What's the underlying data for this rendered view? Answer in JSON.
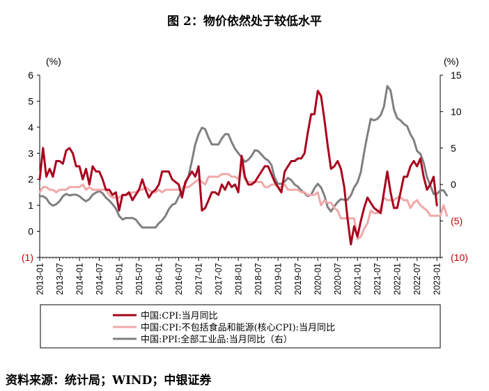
{
  "chart_data": {
    "type": "line",
    "title": "图 2：物价依然处于较低水平",
    "source": "资料来源：统计局；WIND；中银证券",
    "left_axis": {
      "unit_label": "(%)",
      "range": [
        -1,
        6
      ],
      "ticks": [
        {
          "value": 6,
          "label": "6",
          "negative": false
        },
        {
          "value": 5,
          "label": "5",
          "negative": false
        },
        {
          "value": 4,
          "label": "4",
          "negative": false
        },
        {
          "value": 3,
          "label": "3",
          "negative": false
        },
        {
          "value": 2,
          "label": "2",
          "negative": false
        },
        {
          "value": 1,
          "label": "1",
          "negative": false
        },
        {
          "value": 0,
          "label": "0",
          "negative": false
        },
        {
          "value": -1,
          "label": "(1)",
          "negative": true
        }
      ]
    },
    "right_axis": {
      "unit_label": "(%)",
      "range": [
        -10,
        15
      ],
      "ticks": [
        {
          "value": 15,
          "label": "15",
          "negative": false
        },
        {
          "value": 10,
          "label": "10",
          "negative": false
        },
        {
          "value": 5,
          "label": "5",
          "negative": false
        },
        {
          "value": 0,
          "label": "0",
          "negative": false
        },
        {
          "value": -5,
          "label": "(5)",
          "negative": true
        },
        {
          "value": -10,
          "label": "(10)",
          "negative": true
        }
      ]
    },
    "x_range": [
      0,
      121
    ],
    "x_ticks": [
      {
        "index": 0,
        "label": "2013-01"
      },
      {
        "index": 6,
        "label": "2013-07"
      },
      {
        "index": 12,
        "label": "2014-01"
      },
      {
        "index": 18,
        "label": "2014-07"
      },
      {
        "index": 24,
        "label": "2015-01"
      },
      {
        "index": 30,
        "label": "2015-07"
      },
      {
        "index": 36,
        "label": "2016-01"
      },
      {
        "index": 42,
        "label": "2016-07"
      },
      {
        "index": 48,
        "label": "2017-01"
      },
      {
        "index": 54,
        "label": "2017-07"
      },
      {
        "index": 60,
        "label": "2018-01"
      },
      {
        "index": 66,
        "label": "2018-07"
      },
      {
        "index": 72,
        "label": "2019-01"
      },
      {
        "index": 78,
        "label": "2019-07"
      },
      {
        "index": 84,
        "label": "2020-01"
      },
      {
        "index": 90,
        "label": "2020-07"
      },
      {
        "index": 96,
        "label": "2021-01"
      },
      {
        "index": 102,
        "label": "2021-07"
      },
      {
        "index": 108,
        "label": "2022-01"
      },
      {
        "index": 114,
        "label": "2022-07"
      },
      {
        "index": 120,
        "label": "2023-01"
      }
    ],
    "series": [
      {
        "name": "中国:CPI:当月同比",
        "color": "#a8001c",
        "axis": "left",
        "values": [
          2.0,
          3.2,
          2.1,
          2.4,
          2.1,
          2.7,
          2.7,
          2.6,
          3.1,
          3.2,
          3.0,
          2.5,
          2.5,
          2.0,
          2.4,
          1.8,
          2.5,
          2.3,
          2.3,
          2.0,
          1.6,
          1.6,
          1.4,
          1.5,
          0.8,
          1.4,
          1.4,
          1.5,
          1.2,
          1.4,
          1.6,
          2.0,
          1.6,
          1.3,
          1.5,
          1.6,
          1.8,
          2.3,
          2.3,
          2.3,
          2.0,
          1.9,
          1.8,
          1.3,
          1.9,
          2.1,
          2.3,
          2.1,
          2.5,
          0.8,
          0.9,
          1.2,
          1.5,
          1.5,
          1.4,
          1.8,
          1.6,
          1.9,
          1.7,
          1.8,
          1.5,
          2.9,
          2.1,
          1.8,
          1.8,
          1.9,
          2.1,
          2.3,
          2.5,
          2.5,
          2.2,
          1.9,
          1.7,
          1.5,
          2.3,
          2.5,
          2.7,
          2.7,
          2.8,
          2.8,
          3.0,
          3.8,
          4.5,
          4.5,
          5.4,
          5.2,
          4.3,
          3.3,
          2.4,
          2.5,
          2.7,
          2.4,
          1.7,
          0.5,
          -0.5,
          0.2,
          -0.2,
          0.4,
          0.9,
          1.3,
          1.1,
          0.9,
          0.8,
          0.7,
          1.5,
          2.3,
          1.5,
          0.9,
          0.9,
          1.5,
          2.1,
          2.1,
          2.5,
          2.7,
          2.5,
          2.8,
          2.1,
          1.6,
          1.8,
          2.1,
          1.0
        ]
      },
      {
        "name": "中国:CPI:不包括食品和能源(核心CPI):当月同比",
        "color": "#f0a8a8",
        "axis": "left",
        "values": [
          1.5,
          1.7,
          1.7,
          1.6,
          1.6,
          1.5,
          1.6,
          1.6,
          1.6,
          1.7,
          1.7,
          1.7,
          1.7,
          1.8,
          1.6,
          1.7,
          1.6,
          1.6,
          1.6,
          1.6,
          1.6,
          1.4,
          1.3,
          1.3,
          1.3,
          1.4,
          1.4,
          1.4,
          1.5,
          1.5,
          1.6,
          1.6,
          1.7,
          1.6,
          1.5,
          1.5,
          1.6,
          1.5,
          1.6,
          1.6,
          1.6,
          1.6,
          1.6,
          1.6,
          1.7,
          1.7,
          1.8,
          1.9,
          2.0,
          1.9,
          1.8,
          2.1,
          2.1,
          2.1,
          2.1,
          2.2,
          2.2,
          2.2,
          2.1,
          2.1,
          2.0,
          2.5,
          2.0,
          1.9,
          1.9,
          1.9,
          1.9,
          1.9,
          1.7,
          1.7,
          1.8,
          1.8,
          1.7,
          1.7,
          1.8,
          1.6,
          1.6,
          1.6,
          1.6,
          1.5,
          1.5,
          1.4,
          1.4,
          1.4,
          1.5,
          1.0,
          1.2,
          1.1,
          1.1,
          0.9,
          0.8,
          0.5,
          0.5,
          0.5,
          0.5,
          0.5,
          -0.3,
          -0.2,
          0.1,
          0.3,
          0.8,
          0.7,
          0.7,
          0.9,
          1.3,
          1.2,
          1.2,
          1.2,
          1.3,
          1.3,
          1.2,
          1.2,
          0.9,
          1.1,
          1.2,
          1.0,
          0.9,
          0.8,
          0.6,
          0.6,
          0.6,
          0.6,
          1.0,
          0.6
        ]
      },
      {
        "name": "中国:PPI:全部工业品:当月同比（右）",
        "color": "#7f7f7f",
        "axis": "right",
        "values": [
          -1.6,
          -1.6,
          -1.9,
          -2.6,
          -2.9,
          -2.7,
          -2.3,
          -1.6,
          -1.3,
          -1.5,
          -1.4,
          -1.4,
          -1.6,
          -2.0,
          -2.3,
          -2.0,
          -1.4,
          -1.1,
          -0.9,
          -1.2,
          -1.8,
          -2.2,
          -2.7,
          -3.3,
          -4.3,
          -4.8,
          -4.6,
          -4.6,
          -4.6,
          -4.8,
          -5.4,
          -5.9,
          -5.9,
          -5.9,
          -5.9,
          -5.9,
          -5.3,
          -4.9,
          -4.3,
          -3.4,
          -2.8,
          -2.6,
          -1.7,
          -0.8,
          0.1,
          1.2,
          3.3,
          5.5,
          6.9,
          7.8,
          7.6,
          6.4,
          5.5,
          5.5,
          5.5,
          6.3,
          6.9,
          6.9,
          5.8,
          4.9,
          4.3,
          3.7,
          3.1,
          3.4,
          3.9,
          4.7,
          4.6,
          4.1,
          3.6,
          3.3,
          2.7,
          0.9,
          0.1,
          0.1,
          0.4,
          0.9,
          0.6,
          0.0,
          -0.3,
          -0.8,
          -1.2,
          -1.6,
          -1.4,
          -0.5,
          0.1,
          -0.4,
          -1.5,
          -3.1,
          -3.7,
          -3.0,
          -2.4,
          -2.0,
          -2.1,
          -2.1,
          -1.5,
          -0.4,
          0.3,
          1.7,
          4.4,
          6.8,
          9.0,
          8.8,
          9.0,
          9.5,
          10.7,
          13.5,
          12.9,
          10.3,
          9.1,
          8.8,
          8.3,
          8.0,
          6.9,
          6.1,
          4.6,
          4.2,
          3.0,
          1.0,
          -0.1,
          -1.3,
          -1.3,
          -0.8,
          -0.8,
          -1.5
        ]
      }
    ],
    "legend": [
      "中国:CPI:当月同比",
      "中国:CPI:不包括食品和能源(核心CPI):当月同比",
      "中国:PPI:全部工业品:当月同比（右）"
    ]
  }
}
